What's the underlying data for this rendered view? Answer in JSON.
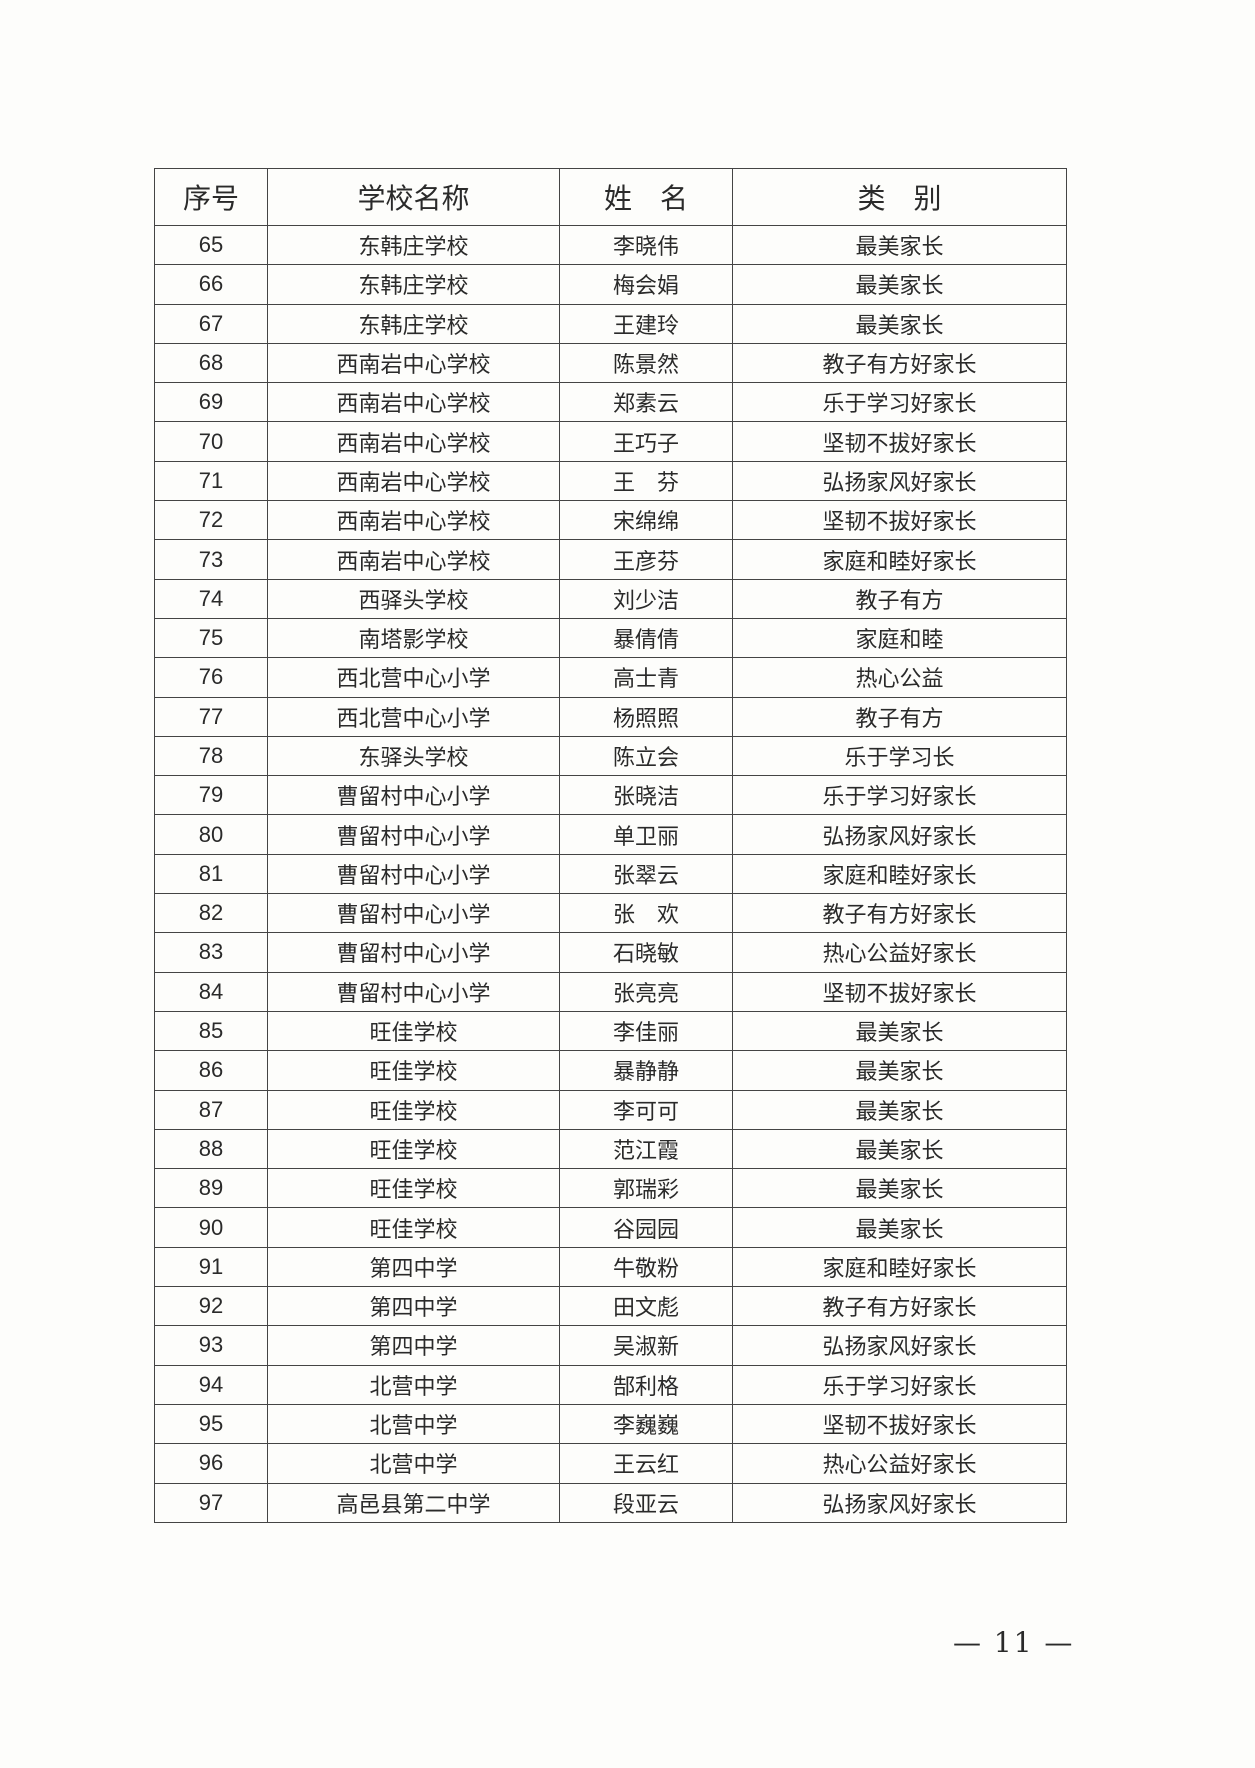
{
  "table": {
    "headers": [
      "序号",
      "学校名称",
      "姓　名",
      "类　别"
    ],
    "rows": [
      [
        "65",
        "东韩庄学校",
        "李晓伟",
        "最美家长"
      ],
      [
        "66",
        "东韩庄学校",
        "梅会娟",
        "最美家长"
      ],
      [
        "67",
        "东韩庄学校",
        "王建玲",
        "最美家长"
      ],
      [
        "68",
        "西南岩中心学校",
        "陈景然",
        "教子有方好家长"
      ],
      [
        "69",
        "西南岩中心学校",
        "郑素云",
        "乐于学习好家长"
      ],
      [
        "70",
        "西南岩中心学校",
        "王巧子",
        "坚韧不拔好家长"
      ],
      [
        "71",
        "西南岩中心学校",
        "王　芬",
        "弘扬家风好家长"
      ],
      [
        "72",
        "西南岩中心学校",
        "宋绵绵",
        "坚韧不拔好家长"
      ],
      [
        "73",
        "西南岩中心学校",
        "王彦芬",
        "家庭和睦好家长"
      ],
      [
        "74",
        "西驿头学校",
        "刘少洁",
        "教子有方"
      ],
      [
        "75",
        "南塔影学校",
        "暴倩倩",
        "家庭和睦"
      ],
      [
        "76",
        "西北营中心小学",
        "高士青",
        "热心公益"
      ],
      [
        "77",
        "西北营中心小学",
        "杨照照",
        "教子有方"
      ],
      [
        "78",
        "东驿头学校",
        "陈立会",
        "乐于学习长"
      ],
      [
        "79",
        "曹留村中心小学",
        "张晓洁",
        "乐于学习好家长"
      ],
      [
        "80",
        "曹留村中心小学",
        "单卫丽",
        "弘扬家风好家长"
      ],
      [
        "81",
        "曹留村中心小学",
        "张翠云",
        "家庭和睦好家长"
      ],
      [
        "82",
        "曹留村中心小学",
        "张　欢",
        "教子有方好家长"
      ],
      [
        "83",
        "曹留村中心小学",
        "石晓敏",
        "热心公益好家长"
      ],
      [
        "84",
        "曹留村中心小学",
        "张亮亮",
        "坚韧不拔好家长"
      ],
      [
        "85",
        "旺佳学校",
        "李佳丽",
        "最美家长"
      ],
      [
        "86",
        "旺佳学校",
        "暴静静",
        "最美家长"
      ],
      [
        "87",
        "旺佳学校",
        "李可可",
        "最美家长"
      ],
      [
        "88",
        "旺佳学校",
        "范江霞",
        "最美家长"
      ],
      [
        "89",
        "旺佳学校",
        "郭瑞彩",
        "最美家长"
      ],
      [
        "90",
        "旺佳学校",
        "谷园园",
        "最美家长"
      ],
      [
        "91",
        "第四中学",
        "牛敬粉",
        "家庭和睦好家长"
      ],
      [
        "92",
        "第四中学",
        "田文彪",
        "教子有方好家长"
      ],
      [
        "93",
        "第四中学",
        "吴淑新",
        "弘扬家风好家长"
      ],
      [
        "94",
        "北营中学",
        "郜利格",
        "乐于学习好家长"
      ],
      [
        "95",
        "北营中学",
        "李巍巍",
        "坚韧不拔好家长"
      ],
      [
        "96",
        "北营中学",
        "王云红",
        "热心公益好家长"
      ],
      [
        "97",
        "高邑县第二中学",
        "段亚云",
        "弘扬家风好家长"
      ]
    ]
  },
  "page_number": "— 11 —"
}
